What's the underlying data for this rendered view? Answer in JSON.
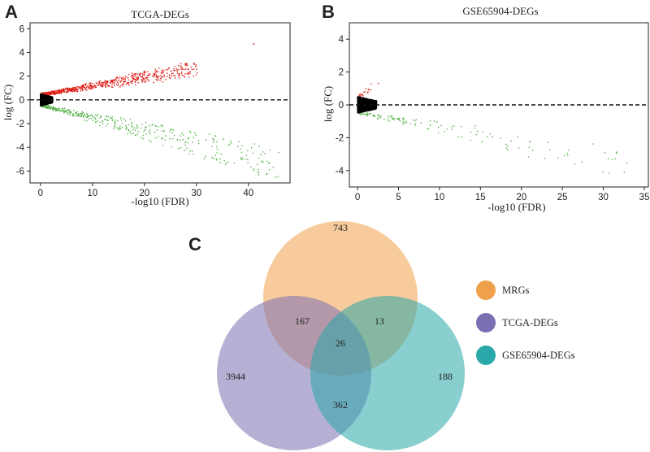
{
  "chart_data": [
    {
      "panel": "A",
      "type": "scatter",
      "title": "TCGA-DEGs",
      "xlabel": "-log10 (FDR)",
      "ylabel": "log (FC)",
      "xlim": [
        -2,
        48
      ],
      "ylim": [
        -7,
        6.5
      ],
      "xticks": [
        0,
        10,
        20,
        30,
        40
      ],
      "yticks": [
        -6,
        -4,
        -2,
        0,
        2,
        4,
        6
      ],
      "reference_line_y": 0,
      "series": [
        {
          "name": "up",
          "color": "#e0201a",
          "n": 800,
          "x_max": 30,
          "fc_min": 0.3,
          "fc_max": 3.1
        },
        {
          "name": "down",
          "color": "#57b24a",
          "n": 450,
          "x_max": 46,
          "fc_min": -0.3,
          "fc_max": -6.6
        },
        {
          "name": "ns",
          "color": "#000000",
          "n": 1500
        }
      ],
      "outliers": [
        {
          "x": 41,
          "y": 4.7
        },
        {
          "x": 28.5,
          "y": 2.3
        },
        {
          "x": 22,
          "y": 2.1
        }
      ]
    },
    {
      "panel": "B",
      "type": "scatter",
      "title": "GSE65904-DEGs",
      "xlabel": "-log10 (FDR)",
      "ylabel": "log (FC)",
      "xlim": [
        -1,
        35.5
      ],
      "ylim": [
        -5,
        5
      ],
      "xticks": [
        0,
        5,
        10,
        15,
        20,
        25,
        30,
        35
      ],
      "yticks": [
        -4,
        -2,
        0,
        2,
        4
      ],
      "reference_line_y": 0,
      "series": [
        {
          "name": "up",
          "color": "#e0201a",
          "n": 25,
          "x_max": 2.5,
          "fc_min": 0.3,
          "fc_max": 1.6
        },
        {
          "name": "down",
          "color": "#57b24a",
          "n": 150,
          "x_max": 33,
          "fc_min": -0.3,
          "fc_max": -4.3
        },
        {
          "name": "ns",
          "color": "#000000",
          "n": 1400
        }
      ]
    },
    {
      "panel": "C",
      "type": "venn",
      "sets": [
        {
          "name": "MRGs",
          "color": "#f0a04b"
        },
        {
          "name": "TCGA-DEGs",
          "color": "#7a6fb2"
        },
        {
          "name": "GSE65904-DEGs",
          "color": "#2aa7a9"
        }
      ],
      "regions": {
        "MRGs_only": 743,
        "TCGA_only": 3944,
        "GSE_only": 188,
        "MRGs_TCGA": 167,
        "MRGs_GSE": 13,
        "TCGA_GSE": 362,
        "all_three": 26
      }
    }
  ]
}
